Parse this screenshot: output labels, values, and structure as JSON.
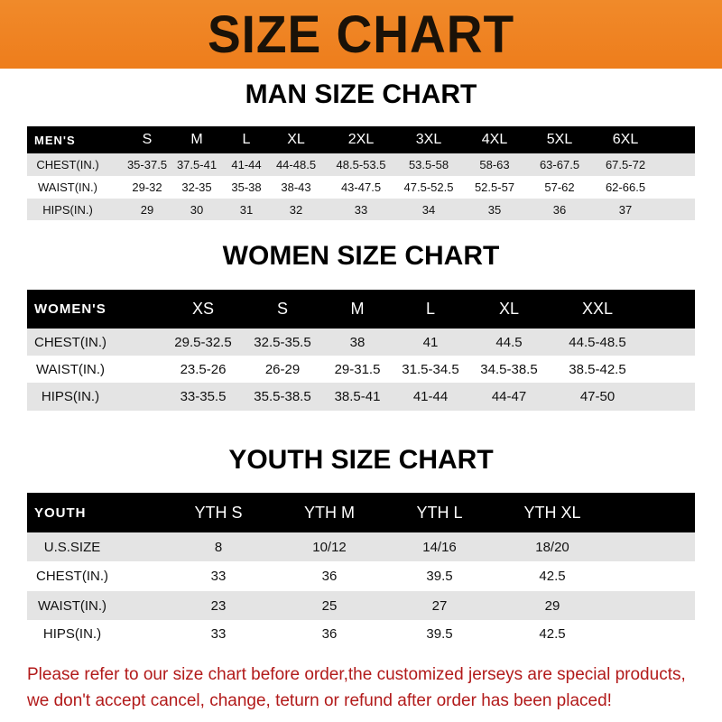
{
  "header": {
    "title": "SIZE CHART"
  },
  "men": {
    "title": "MAN SIZE CHART",
    "headers": [
      "MEN'S",
      "S",
      "M",
      "L",
      "XL",
      "2XL",
      "3XL",
      "4XL",
      "5XL",
      "6XL"
    ],
    "rows": [
      [
        "CHEST(IN.)",
        "35-37.5",
        "37.5-41",
        "41-44",
        "44-48.5",
        "48.5-53.5",
        "53.5-58",
        "58-63",
        "63-67.5",
        "67.5-72"
      ],
      [
        "WAIST(IN.)",
        "29-32",
        "32-35",
        "35-38",
        "38-43",
        "43-47.5",
        "47.5-52.5",
        "52.5-57",
        "57-62",
        "62-66.5"
      ],
      [
        "HIPS(IN.)",
        "29",
        "30",
        "31",
        "32",
        "33",
        "34",
        "35",
        "36",
        "37"
      ]
    ]
  },
  "women": {
    "title": "WOMEN SIZE CHART",
    "headers": [
      "WOMEN'S",
      "XS",
      "S",
      "M",
      "L",
      "XL",
      "XXL"
    ],
    "rows": [
      [
        "CHEST(IN.)",
        "29.5-32.5",
        "32.5-35.5",
        "38",
        "41",
        "44.5",
        "44.5-48.5"
      ],
      [
        "WAIST(IN.)",
        "23.5-26",
        "26-29",
        "29-31.5",
        "31.5-34.5",
        "34.5-38.5",
        "38.5-42.5"
      ],
      [
        "HIPS(IN.)",
        "33-35.5",
        "35.5-38.5",
        "38.5-41",
        "41-44",
        "44-47",
        "47-50"
      ]
    ]
  },
  "youth": {
    "title": "YOUTH SIZE CHART",
    "headers": [
      "YOUTH",
      "YTH S",
      "YTH M",
      "YTH L",
      "YTH XL"
    ],
    "rows": [
      [
        "U.S.SIZE",
        "8",
        "10/12",
        "14/16",
        "18/20"
      ],
      [
        "CHEST(IN.)",
        "33",
        "36",
        "39.5",
        "42.5"
      ],
      [
        "WAIST(IN.)",
        "23",
        "25",
        "27",
        "29"
      ],
      [
        "HIPS(IN.)",
        "33",
        "36",
        "39.5",
        "42.5"
      ]
    ]
  },
  "note": {
    "line1": "Please refer to our size chart before order,the customized jerseys are special products,",
    "line2": "we don't accept cancel, change, teturn or refund after order has been placed!"
  },
  "colors": {
    "banner": "#ee7d1c",
    "note": "#b21a1a",
    "row_gray": "#e4e4e4"
  }
}
